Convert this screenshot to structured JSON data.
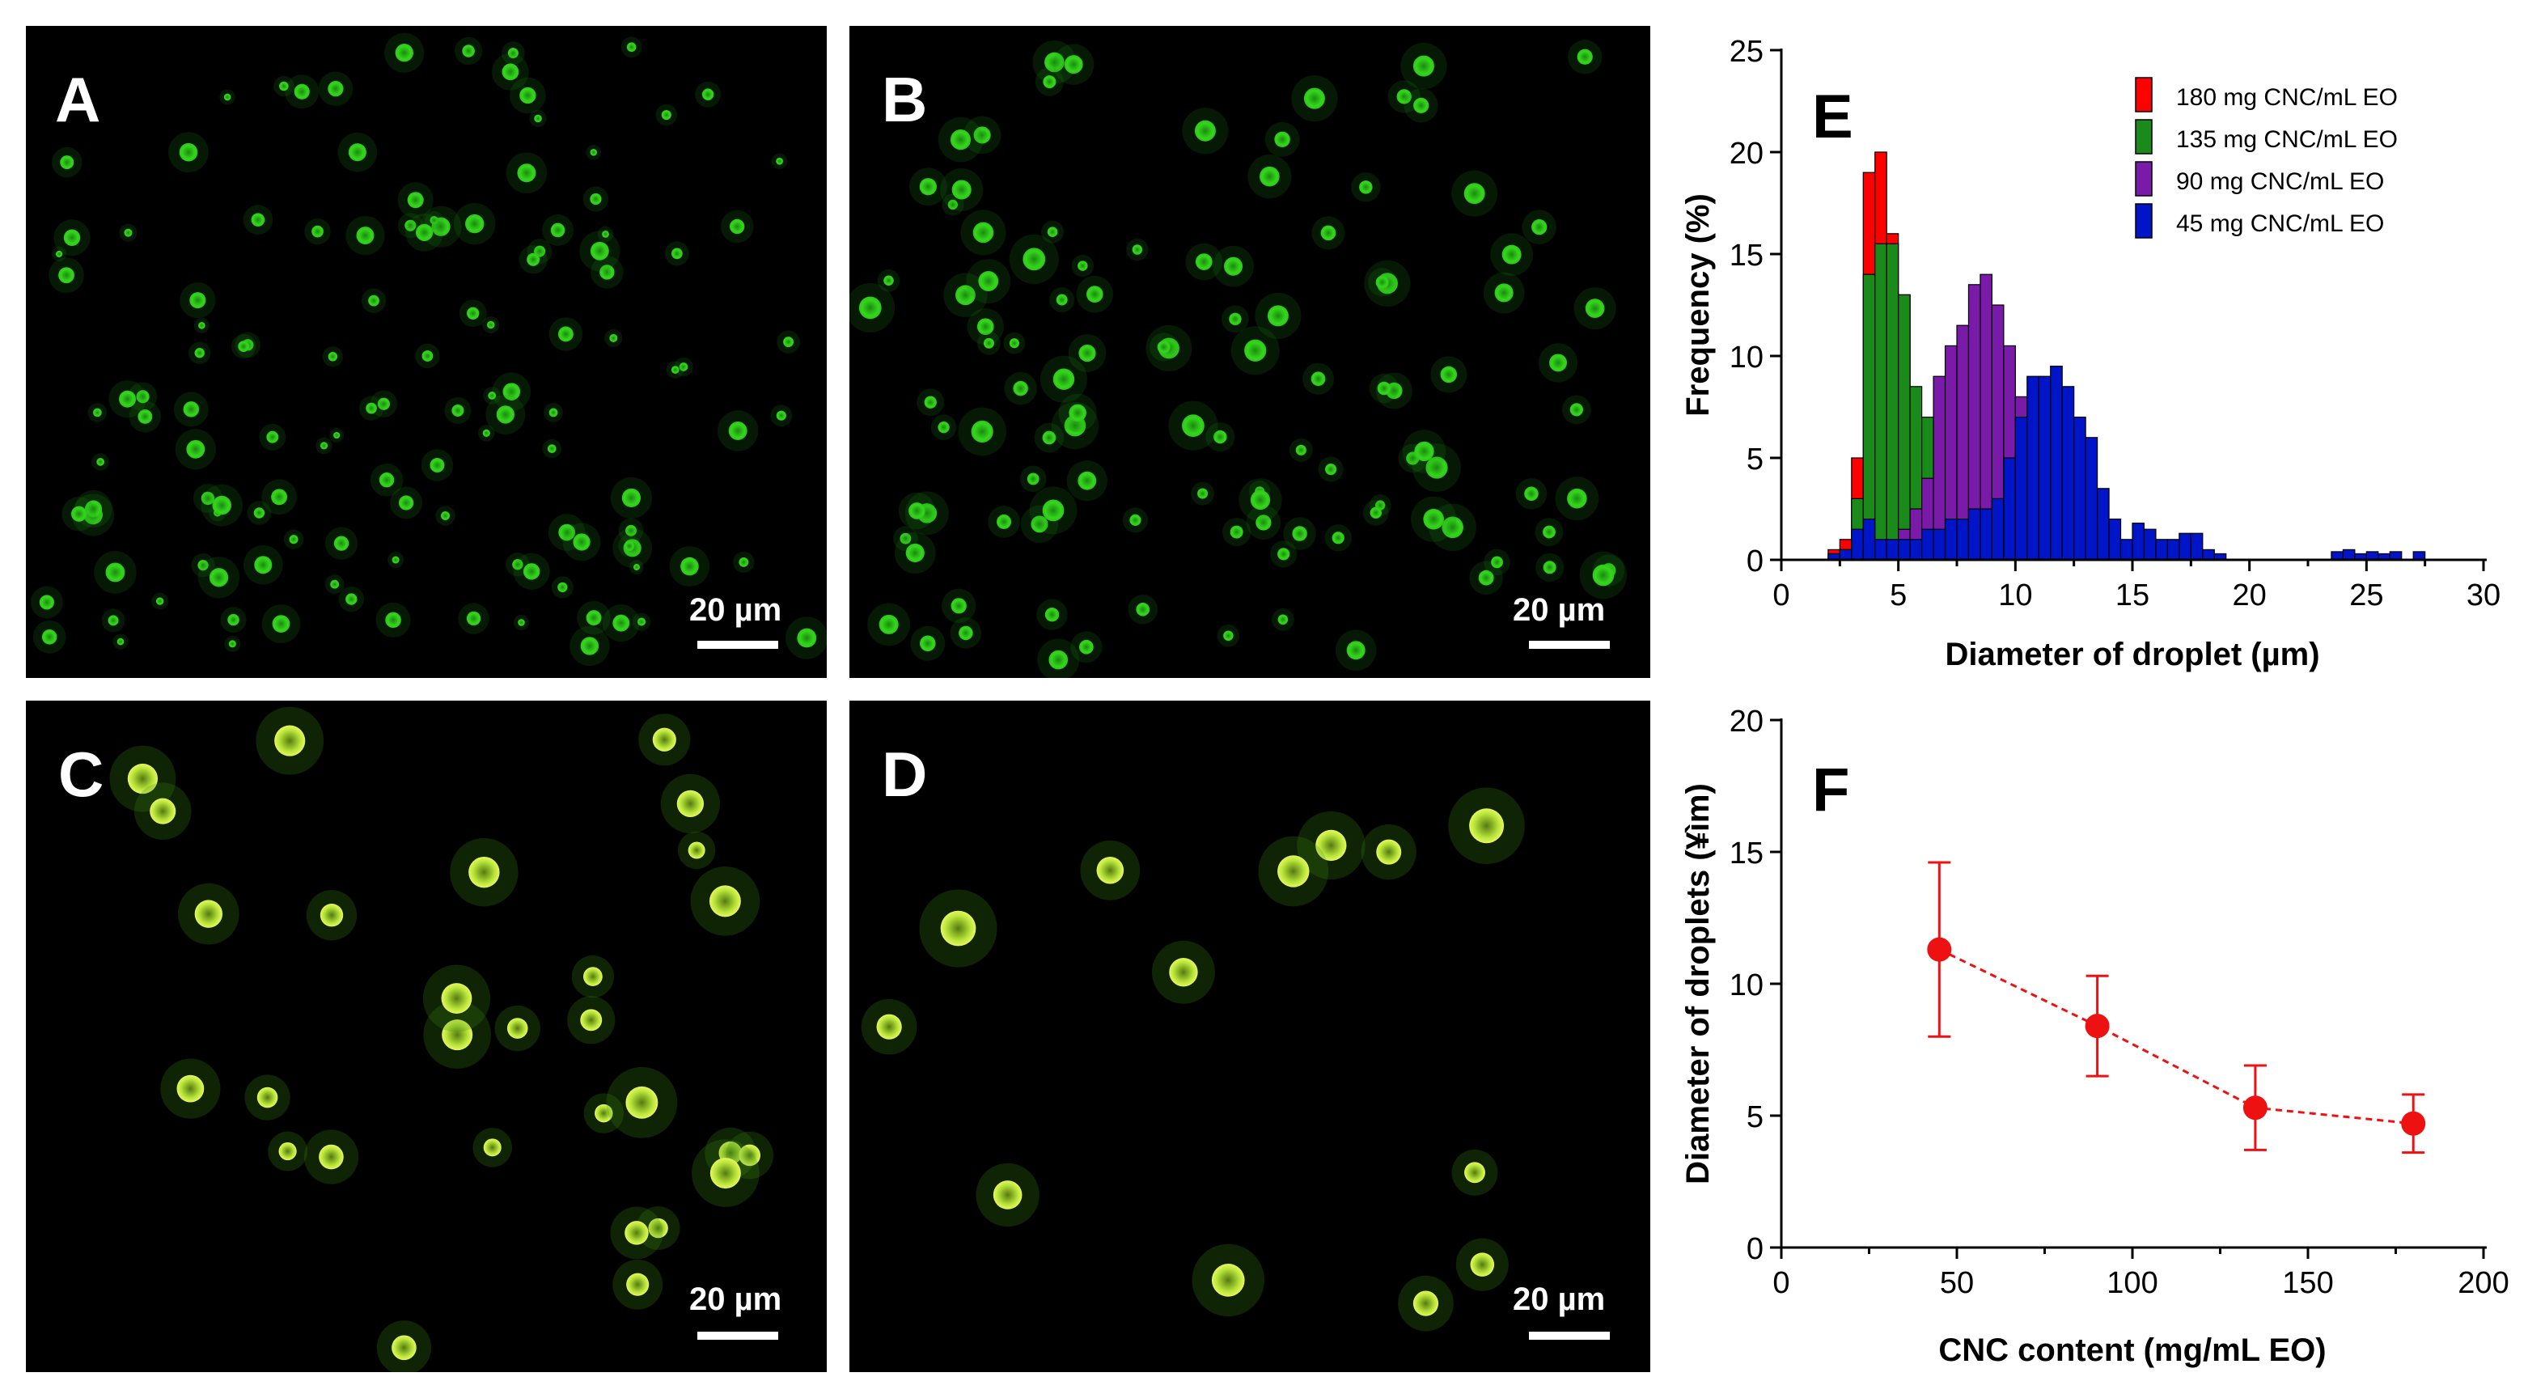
{
  "micrographs": [
    {
      "label": "A",
      "scale_bar": "20 µm"
    },
    {
      "label": "B",
      "scale_bar": "20 µm"
    },
    {
      "label": "C",
      "scale_bar": "20 µm"
    },
    {
      "label": "D",
      "scale_bar": "20 µm"
    }
  ],
  "colors": {
    "red": "#ff0000",
    "green": "#1a8a1a",
    "purple": "#7a1aa8",
    "blue": "#0014c8",
    "line_red": "#ee1111"
  },
  "chart_data": [
    {
      "panel": "E",
      "type": "bar",
      "xlabel": "Diameter of droplet  (µm)",
      "ylabel": "Frequency  (%)",
      "xlim": [
        0,
        30
      ],
      "ylim": [
        0,
        25
      ],
      "xticks": [
        0,
        5,
        10,
        15,
        20,
        25,
        30
      ],
      "yticks": [
        0,
        5,
        10,
        15,
        20,
        25
      ],
      "bin_width": 0.5,
      "legend_position": "top-right",
      "series": [
        {
          "name": "180 mg CNC/mL EO",
          "color": "#ff0000",
          "x": [
            2.0,
            2.5,
            3.0,
            3.5,
            4.0,
            4.5,
            5.0,
            5.5,
            6.0,
            6.5
          ],
          "values": [
            0.5,
            1.0,
            5.0,
            19.0,
            20.0,
            16.0,
            13.0,
            5.0,
            1.0,
            0.3
          ]
        },
        {
          "name": "135 mg CNC/mL EO",
          "color": "#1a8a1a",
          "x": [
            2.5,
            3.0,
            3.5,
            4.0,
            4.5,
            5.0,
            5.5,
            6.0,
            6.5,
            7.0
          ],
          "values": [
            0.5,
            3.0,
            14.0,
            15.5,
            15.5,
            13.0,
            8.5,
            7.0,
            1.5,
            0.5
          ]
        },
        {
          "name": "90 mg CNC/mL EO",
          "color": "#7a1aa8",
          "x": [
            4.0,
            4.5,
            5.0,
            5.5,
            6.0,
            6.5,
            7.0,
            7.5,
            8.0,
            8.5,
            9.0,
            9.5,
            10.0,
            10.5,
            11.0,
            11.5
          ],
          "values": [
            0.2,
            0.5,
            1.5,
            2.5,
            4.0,
            9.0,
            10.5,
            11.5,
            13.5,
            14.0,
            12.5,
            10.5,
            8.0,
            5.0,
            2.0,
            0.5
          ]
        },
        {
          "name": "45 mg CNC/mL EO",
          "color": "#0014c8",
          "x": [
            2.0,
            2.5,
            3.0,
            3.5,
            4.0,
            4.5,
            5.0,
            5.5,
            6.0,
            6.5,
            7.0,
            7.5,
            8.0,
            8.5,
            9.0,
            9.5,
            10.0,
            10.5,
            11.0,
            11.5,
            12.0,
            12.5,
            13.0,
            13.5,
            14.0,
            14.5,
            15.0,
            15.5,
            16.0,
            16.5,
            17.0,
            17.5,
            18.0,
            18.5,
            23.5,
            24.0,
            24.5,
            25.0,
            25.5,
            26.0,
            27.0
          ],
          "values": [
            0.3,
            0.5,
            1.5,
            2.0,
            1.0,
            1.0,
            1.0,
            1.0,
            1.5,
            1.5,
            2.0,
            2.0,
            2.5,
            2.5,
            3.0,
            5.0,
            7.0,
            9.0,
            9.0,
            9.5,
            8.5,
            7.0,
            6.0,
            3.5,
            2.0,
            1.0,
            1.8,
            1.5,
            1.0,
            1.0,
            1.3,
            1.3,
            0.5,
            0.3,
            0.4,
            0.5,
            0.3,
            0.4,
            0.3,
            0.4,
            0.4
          ]
        }
      ]
    },
    {
      "panel": "F",
      "type": "scatter",
      "xlabel": "CNC content (mg/mL EO)",
      "ylabel": "Diameter of droplets (¥ìm)",
      "xlim": [
        0,
        200
      ],
      "ylim": [
        0,
        20
      ],
      "xticks": [
        0,
        50,
        100,
        150,
        200
      ],
      "yticks": [
        0,
        5,
        10,
        15,
        20
      ],
      "series": [
        {
          "color": "#ee1111",
          "x": [
            45,
            90,
            135,
            180
          ],
          "values": [
            11.3,
            8.4,
            5.3,
            4.7
          ],
          "error": [
            3.3,
            1.9,
            1.6,
            1.1
          ]
        }
      ]
    }
  ]
}
